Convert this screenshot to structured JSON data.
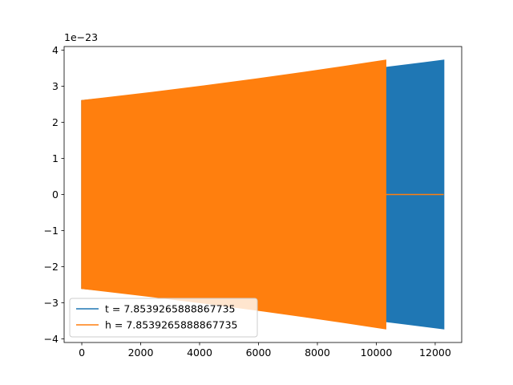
{
  "chart_data": {
    "type": "line",
    "title": "",
    "xlabel": "",
    "ylabel": "",
    "xlim": [
      -600,
      12900
    ],
    "ylim": [
      -4.1,
      4.1
    ],
    "y_offset_label": "1e−23",
    "x_ticks": [
      0,
      2000,
      4000,
      6000,
      8000,
      10000,
      12000
    ],
    "y_ticks": [
      4,
      3,
      2,
      1,
      0,
      -1,
      -2,
      -3,
      -4
    ],
    "grid": false,
    "legend_position": "lower-left",
    "series": [
      {
        "name": "t = 7.8539265888867735",
        "color": "#1f77b4",
        "kind": "oscillating-envelope",
        "x_start": 0,
        "x_end": 12290,
        "envelope_start": 2.6,
        "envelope_end": 3.72,
        "tail_value": 0
      },
      {
        "name": "h = 7.8539265888867735",
        "color": "#ff7f0e",
        "kind": "oscillating-envelope",
        "x_start": 0,
        "x_end": 10320,
        "envelope_start": 2.6,
        "envelope_end": 3.72,
        "tail_value": 0,
        "tail_end": 12290
      }
    ]
  }
}
